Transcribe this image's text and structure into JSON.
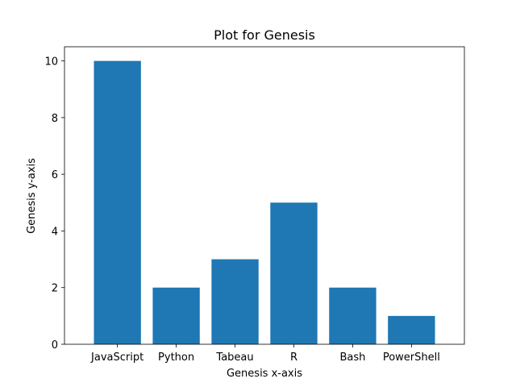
{
  "chart_data": {
    "type": "bar",
    "title": "Plot for Genesis",
    "xlabel": "Genesis x-axis",
    "ylabel": "Genesis y-axis",
    "categories": [
      "JavaScript",
      "Python",
      "Tabeau",
      "R",
      "Bash",
      "PowerShell"
    ],
    "values": [
      10,
      2,
      3,
      5,
      2,
      1
    ],
    "ylim": [
      0,
      10.5
    ],
    "yticks": [
      0,
      2,
      4,
      6,
      8,
      10
    ],
    "grid": false,
    "bar_color": "#1f77b4"
  }
}
